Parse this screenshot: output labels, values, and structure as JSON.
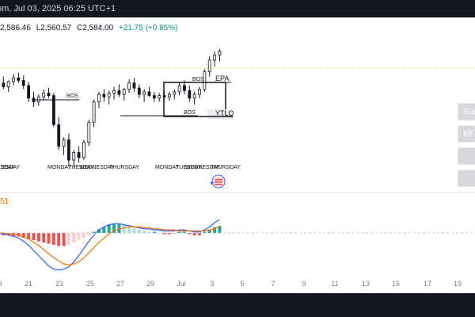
{
  "header": {
    "title_fragment": "om, Jul 03, 2025 06:25 UTC+1"
  },
  "ohlc": {
    "high": "2,586.46",
    "low": "L2,560.57",
    "close": "C2,584.00",
    "change": "+21.75 (+0.85%)"
  },
  "side_buttons": [
    "Sta",
    "Eff",
    "",
    ""
  ],
  "macd": {
    "value_fragment": "51"
  },
  "colors": {
    "up": "#26a69a",
    "down": "#ef5350",
    "macd_line": "#2962ff",
    "signal_line": "#ff6d00",
    "hist_up_strong": "#26a69a",
    "hist_up_weak": "#b2dfdb",
    "hist_down_strong": "#ef5350",
    "hist_down_weak": "#ffcdd2"
  },
  "chart_data": {
    "type": "candlestick",
    "x_tick_labels": [
      "9",
      "21",
      "23",
      "25",
      "27",
      "29",
      "Jul",
      "3",
      "5",
      "7",
      "9",
      "11",
      "13",
      "15",
      "17",
      "19"
    ],
    "price_annotations": [
      "BOS",
      "BOS",
      "BOS",
      "EPA",
      "YTLQ"
    ],
    "day_labels": [
      "ESDAY",
      "MONDAY",
      "TUESDAY",
      "WEDNESDAY",
      "THURSDAY",
      "MONDAY",
      "TUESDAY",
      "WEDNESDAY",
      "THURSDAY"
    ],
    "ohlc": [
      [
        2540,
        2548,
        2536,
        2545
      ],
      [
        2545,
        2550,
        2540,
        2542
      ],
      [
        2542,
        2547,
        2538,
        2546
      ],
      [
        2546,
        2552,
        2543,
        2549
      ],
      [
        2549,
        2553,
        2545,
        2547
      ],
      [
        2547,
        2551,
        2540,
        2543
      ],
      [
        2543,
        2546,
        2530,
        2533
      ],
      [
        2533,
        2538,
        2526,
        2530
      ],
      [
        2530,
        2536,
        2527,
        2534
      ],
      [
        2534,
        2540,
        2531,
        2537
      ],
      [
        2537,
        2541,
        2533,
        2535
      ],
      [
        2535,
        2537,
        2510,
        2512
      ],
      [
        2512,
        2518,
        2492,
        2495
      ],
      [
        2495,
        2502,
        2488,
        2500
      ],
      [
        2500,
        2505,
        2480,
        2484
      ],
      [
        2484,
        2492,
        2478,
        2490
      ],
      [
        2490,
        2495,
        2482,
        2486
      ],
      [
        2486,
        2500,
        2484,
        2498
      ],
      [
        2498,
        2516,
        2495,
        2514
      ],
      [
        2514,
        2532,
        2510,
        2530
      ],
      [
        2530,
        2538,
        2525,
        2536
      ],
      [
        2536,
        2540,
        2530,
        2534
      ],
      [
        2534,
        2539,
        2528,
        2537
      ],
      [
        2537,
        2542,
        2532,
        2539
      ],
      [
        2539,
        2544,
        2534,
        2536
      ],
      [
        2536,
        2541,
        2531,
        2540
      ],
      [
        2540,
        2548,
        2537,
        2545
      ],
      [
        2545,
        2549,
        2538,
        2541
      ],
      [
        2541,
        2544,
        2533,
        2536
      ],
      [
        2536,
        2540,
        2530,
        2538
      ],
      [
        2538,
        2542,
        2534,
        2535
      ],
      [
        2535,
        2538,
        2530,
        2533
      ],
      [
        2533,
        2537,
        2530,
        2535
      ],
      [
        2535,
        2539,
        2532,
        2534
      ],
      [
        2534,
        2538,
        2531,
        2536
      ],
      [
        2536,
        2540,
        2532,
        2538
      ],
      [
        2538,
        2546,
        2535,
        2543
      ],
      [
        2543,
        2547,
        2536,
        2539
      ],
      [
        2539,
        2543,
        2530,
        2533
      ],
      [
        2533,
        2538,
        2528,
        2536
      ],
      [
        2536,
        2542,
        2533,
        2540
      ],
      [
        2540,
        2556,
        2538,
        2554
      ],
      [
        2554,
        2566,
        2550,
        2563
      ],
      [
        2563,
        2570,
        2558,
        2567
      ],
      [
        2567,
        2572,
        2562,
        2570
      ]
    ],
    "macd_histogram": [
      -1,
      -2,
      -2,
      -3,
      -3,
      -4,
      -5,
      -6,
      -7,
      -8,
      -9,
      -10,
      -11,
      -11,
      -10,
      -8,
      -6,
      -4,
      -2,
      1,
      3,
      5,
      7,
      8,
      8,
      7,
      5,
      4,
      3,
      2,
      1,
      1,
      0,
      -1,
      -1,
      0,
      1,
      1,
      -1,
      -2,
      -2,
      1,
      3,
      5,
      6
    ],
    "macd_line": [
      0,
      -1,
      -2,
      -3,
      -5,
      -8,
      -12,
      -17,
      -22,
      -27,
      -32,
      -35,
      -36,
      -35,
      -33,
      -28,
      -22,
      -15,
      -8,
      -2,
      3,
      6,
      8,
      9,
      9,
      8,
      7,
      6,
      5,
      4,
      4,
      3,
      3,
      2,
      2,
      2,
      3,
      3,
      2,
      1,
      1,
      3,
      6,
      10,
      13
    ],
    "signal_line": [
      0,
      0,
      -1,
      -1,
      -2,
      -4,
      -6,
      -9,
      -12,
      -16,
      -20,
      -24,
      -27,
      -30,
      -31,
      -30,
      -28,
      -24,
      -19,
      -14,
      -9,
      -5,
      -1,
      2,
      4,
      5,
      6,
      6,
      6,
      5,
      5,
      4,
      4,
      3,
      3,
      3,
      2,
      2,
      2,
      2,
      2,
      2,
      3,
      4,
      6
    ],
    "ylim": [
      2474,
      2578
    ],
    "grid": false
  }
}
